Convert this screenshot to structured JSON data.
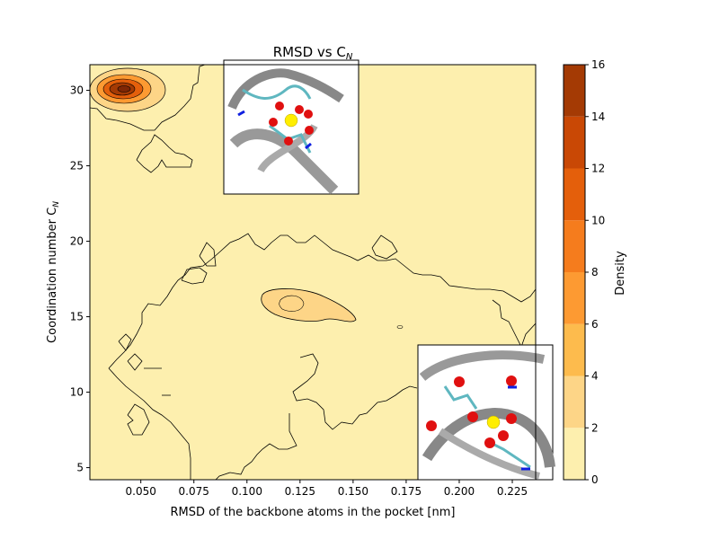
{
  "chart_data": {
    "type": "contour",
    "title": "RMSD vs C",
    "title_subscript": "N",
    "xlabel": "RMSD of the backbone atoms in the pocket [nm]",
    "ylabel": "Coordination number C",
    "ylabel_subscript": "N",
    "xlim": [
      0.026,
      0.236
    ],
    "ylim": [
      4.2,
      31.7
    ],
    "x_ticks": [
      0.05,
      0.075,
      0.1,
      0.125,
      0.15,
      0.175,
      0.2,
      0.225
    ],
    "x_tick_labels": [
      "0.050",
      "0.075",
      "0.100",
      "0.125",
      "0.150",
      "0.175",
      "0.200",
      "0.225"
    ],
    "y_ticks": [
      5,
      10,
      15,
      20,
      25,
      30
    ],
    "y_tick_labels": [
      "5",
      "10",
      "15",
      "20",
      "25",
      "30"
    ],
    "colorbar": {
      "label": "Density",
      "levels": [
        0,
        2,
        4,
        6,
        8,
        10,
        12,
        14,
        16
      ],
      "tick_labels": [
        "0",
        "2",
        "4",
        "6",
        "8",
        "10",
        "12",
        "14",
        "16"
      ],
      "colors": [
        "#fdefae",
        "#fdd587",
        "#fdbb4d",
        "#fd9a32",
        "#f57c1d",
        "#e45f0b",
        "#c94805",
        "#a43a04",
        "#7f2705"
      ]
    },
    "peaks": [
      {
        "x": 0.043,
        "y": 30.0,
        "density": 15
      },
      {
        "x": 0.118,
        "y": 16.0,
        "density": 3
      }
    ],
    "grid": false,
    "insets": [
      {
        "name": "molecular-structure-top"
      },
      {
        "name": "molecular-structure-bottom-right"
      }
    ]
  }
}
